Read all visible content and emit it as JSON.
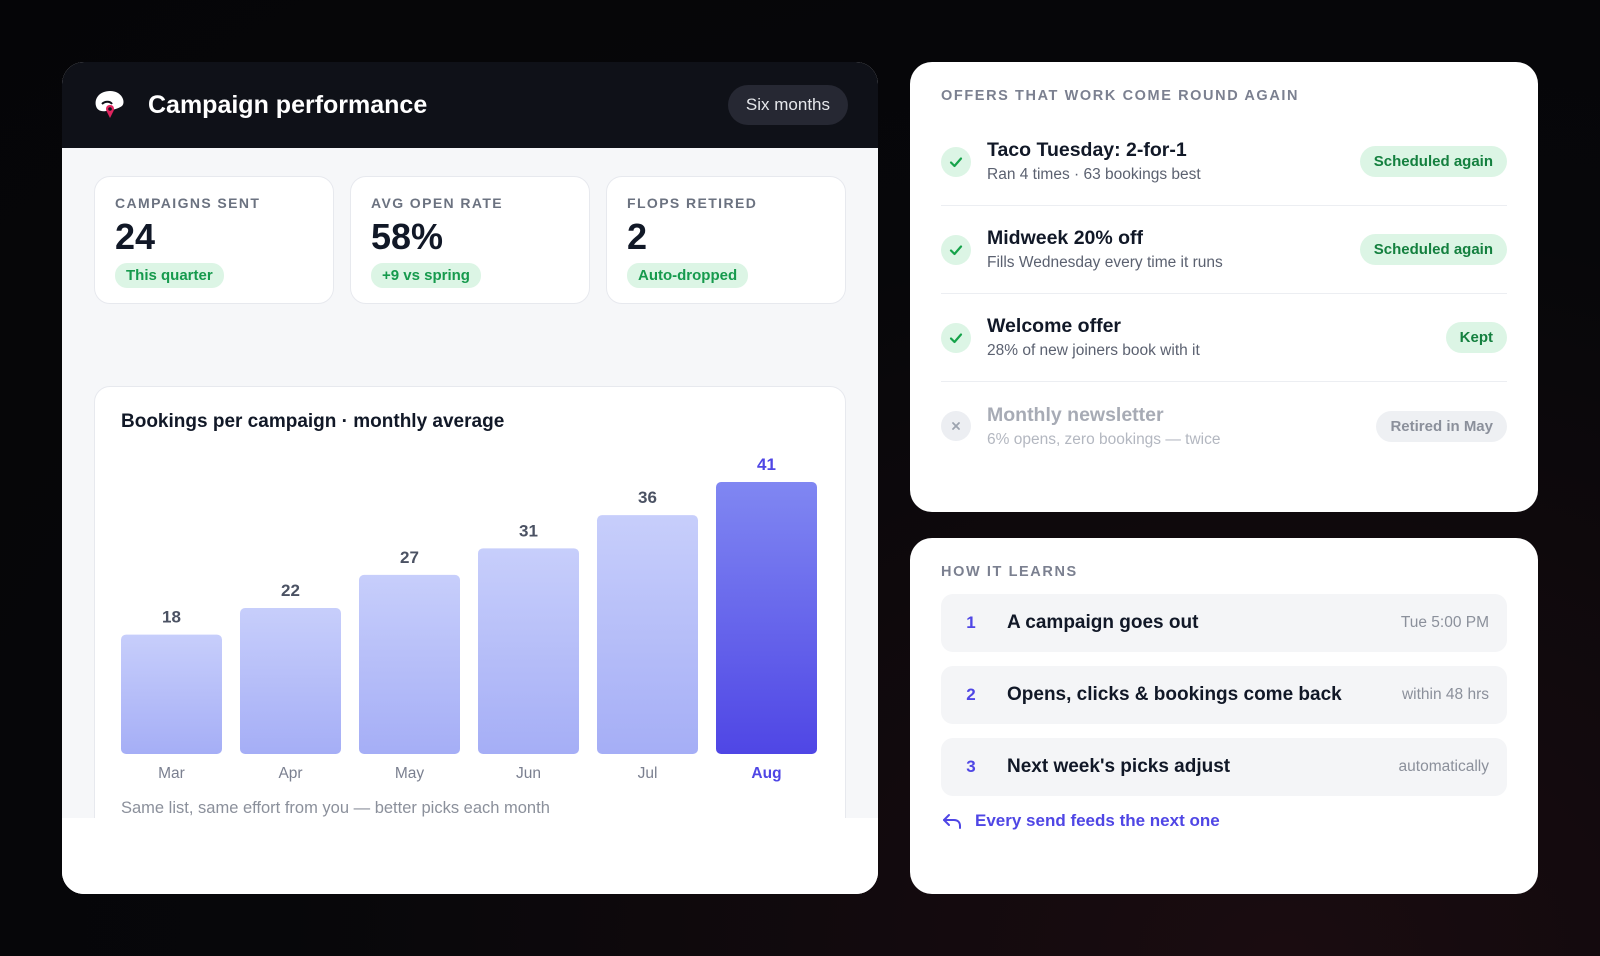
{
  "performance": {
    "title": "Campaign performance",
    "range": "Six months",
    "stats": [
      {
        "label": "CAMPAIGNS SENT",
        "value": "24",
        "badge": "This quarter"
      },
      {
        "label": "AVG OPEN RATE",
        "value": "58%",
        "badge": "+9 vs spring"
      },
      {
        "label": "FLOPS RETIRED",
        "value": "2",
        "badge": "Auto-dropped"
      }
    ],
    "caption": "Same list, same effort from you — better picks each month"
  },
  "chart_data": {
    "type": "bar",
    "title": "Bookings per campaign · monthly average",
    "categories": [
      "Mar",
      "Apr",
      "May",
      "Jun",
      "Jul",
      "Aug"
    ],
    "values": [
      18,
      22,
      27,
      31,
      36,
      41
    ],
    "highlight": "Aug",
    "ylim": [
      0,
      41
    ],
    "grid": false,
    "colors": {
      "bar_top": "#c7cefb",
      "bar_bottom": "#a5aef6",
      "highlight_top": "#8087f2",
      "highlight_bottom": "#4f46e5",
      "label": "#4b5263",
      "highlight_label": "#4f46e5"
    }
  },
  "offers": {
    "heading": "OFFERS THAT WORK COME ROUND AGAIN",
    "items": [
      {
        "title": "Taco Tuesday: 2-for-1",
        "sub": "Ran 4 times · 63 bookings best",
        "badge": "Scheduled again",
        "status": "kept"
      },
      {
        "title": "Midweek 20% off",
        "sub": "Fills Wednesday every time it runs",
        "badge": "Scheduled again",
        "status": "kept"
      },
      {
        "title": "Welcome offer",
        "sub": "28% of new joiners book with it",
        "badge": "Kept",
        "status": "kept"
      },
      {
        "title": "Monthly newsletter",
        "sub": "6% opens, zero bookings — twice",
        "badge": "Retired in May",
        "status": "retired"
      }
    ]
  },
  "learning": {
    "heading": "HOW IT LEARNS",
    "steps": [
      {
        "num": "1",
        "text": "A campaign goes out",
        "meta": "Tue 5:00 PM"
      },
      {
        "num": "2",
        "text": "Opens, clicks & bookings come back",
        "meta": "within 48 hrs"
      },
      {
        "num": "3",
        "text": "Next week's picks adjust",
        "meta": "automatically"
      }
    ],
    "footer": "Every send feeds the next one"
  }
}
